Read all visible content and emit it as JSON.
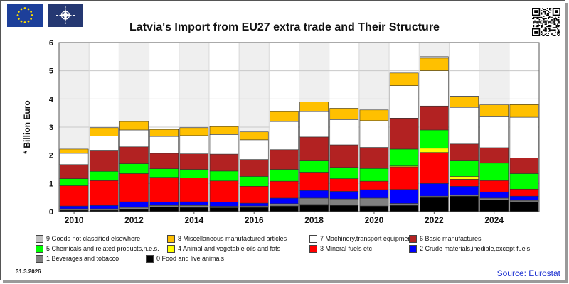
{
  "title": "Latvia's Import from EU27 extra trade and Their Structure",
  "source": "Source: Eurostat",
  "date_stamp": "31.3.2026",
  "flags": [
    {
      "name": "eu-flag",
      "color": "#1d3f9a"
    },
    {
      "name": "nato-flag",
      "color": "#253872"
    }
  ],
  "chart_data": {
    "type": "bar",
    "stacked": true,
    "ylabel": "* Billion Euro",
    "ylim": [
      0,
      6
    ],
    "yticks": [
      0,
      1,
      2,
      3,
      4,
      5,
      6
    ],
    "x": [
      2010,
      2011,
      2012,
      2013,
      2014,
      2015,
      2016,
      2017,
      2018,
      2019,
      2020,
      2021,
      2022,
      2023,
      2024,
      2025
    ],
    "xtick_labels": [
      "2010",
      "2012",
      "2014",
      "2016",
      "2018",
      "2020",
      "2022",
      "2024"
    ],
    "grid": true,
    "series": [
      {
        "name": "0 Food and live animals",
        "color": "#000000",
        "values": [
          0.05,
          0.05,
          0.08,
          0.17,
          0.15,
          0.14,
          0.15,
          0.2,
          0.23,
          0.22,
          0.2,
          0.22,
          0.5,
          0.55,
          0.42,
          0.35
        ]
      },
      {
        "name": "1 Beverages and tobacco",
        "color": "#808080",
        "values": [
          0.05,
          0.05,
          0.07,
          0.05,
          0.07,
          0.05,
          0.05,
          0.08,
          0.25,
          0.23,
          0.28,
          0.07,
          0.05,
          0.05,
          0.06,
          0.05
        ]
      },
      {
        "name": "2 Crude materials,inedible,except fuels",
        "color": "#0000ff",
        "values": [
          0.1,
          0.12,
          0.2,
          0.12,
          0.13,
          0.15,
          0.1,
          0.2,
          0.27,
          0.27,
          0.3,
          0.5,
          0.45,
          0.3,
          0.22,
          0.15
        ]
      },
      {
        "name": "3 Mineral fuels etc",
        "color": "#ff0000",
        "values": [
          0.72,
          0.88,
          1.0,
          0.88,
          0.85,
          0.75,
          0.6,
          0.6,
          0.65,
          0.45,
          0.3,
          0.8,
          1.1,
          0.25,
          0.4,
          0.25
        ]
      },
      {
        "name": "4 Animal and vegetable oils and fats",
        "color": "#ffff00",
        "values": [
          0.0,
          0.0,
          0.0,
          0.0,
          0.0,
          0.0,
          0.0,
          0.0,
          0.0,
          0.0,
          0.0,
          0.03,
          0.15,
          0.1,
          0.02,
          0.0
        ]
      },
      {
        "name": "5 Chemicals and related products,n.e.s.",
        "color": "#00ff00",
        "values": [
          0.25,
          0.33,
          0.35,
          0.3,
          0.3,
          0.35,
          0.35,
          0.42,
          0.4,
          0.4,
          0.45,
          0.6,
          0.65,
          0.55,
          0.6,
          0.55
        ]
      },
      {
        "name": "6 Basic manufactures",
        "color": "#b22222",
        "values": [
          0.5,
          0.75,
          0.6,
          0.55,
          0.55,
          0.6,
          0.6,
          0.7,
          0.85,
          0.8,
          0.75,
          1.1,
          0.85,
          0.6,
          0.55,
          0.55
        ]
      },
      {
        "name": "7 Machinery,transport equipment",
        "color": "#ffffff",
        "values": [
          0.4,
          0.5,
          0.6,
          0.6,
          0.65,
          0.7,
          0.7,
          1.0,
          0.9,
          0.9,
          0.95,
          1.15,
          1.25,
          1.3,
          1.1,
          1.45
        ]
      },
      {
        "name": "8 Miscellaneous manufactured articles",
        "color": "#ffc000",
        "values": [
          0.15,
          0.3,
          0.3,
          0.25,
          0.28,
          0.28,
          0.28,
          0.35,
          0.35,
          0.4,
          0.38,
          0.45,
          0.45,
          0.38,
          0.42,
          0.45
        ]
      },
      {
        "name": "9 Goods not classified elsewhere",
        "color": "#c0c0c0",
        "values": [
          0.0,
          0.0,
          0.0,
          0.0,
          0.0,
          0.0,
          0.0,
          0.0,
          0.0,
          0.0,
          0.0,
          0.0,
          0.05,
          0.02,
          0.0,
          0.02
        ]
      }
    ]
  }
}
